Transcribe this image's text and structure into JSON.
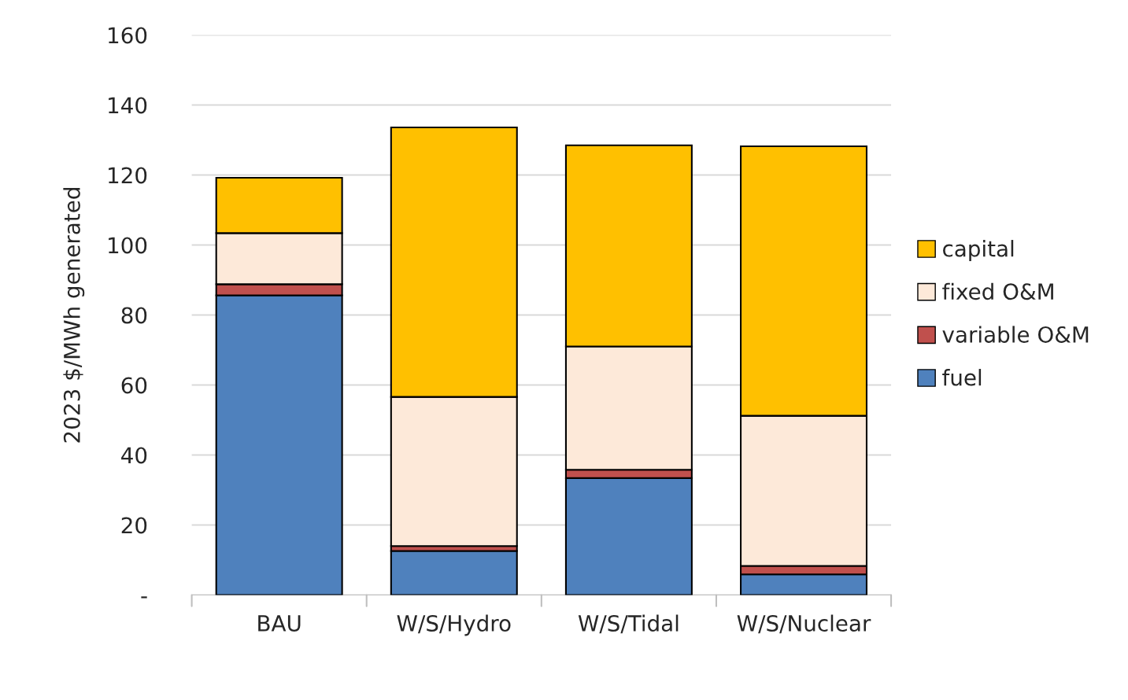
{
  "chart_data": {
    "type": "bar",
    "stacked": true,
    "ylabel": "2023 $/MWh generated",
    "categories": [
      "BAU",
      "W/S/Hydro",
      "W/S/Tidal",
      "W/S/Nuclear"
    ],
    "series": [
      {
        "name": "fuel",
        "color": "#4f81bd",
        "values": [
          85.6,
          12.6,
          33.4,
          5.9
        ]
      },
      {
        "name": "variable O&M",
        "color": "#c0504d",
        "values": [
          3.2,
          1.4,
          2.4,
          2.4
        ]
      },
      {
        "name": "fixed O&M",
        "color": "#fde9d9",
        "values": [
          14.6,
          42.6,
          35.2,
          42.9
        ]
      },
      {
        "name": "capital",
        "color": "#ffc000",
        "values": [
          15.8,
          77.0,
          57.5,
          77.0
        ]
      }
    ],
    "ylim": [
      0,
      160
    ],
    "yticks": [
      {
        "value": 0,
        "label": "-"
      },
      20,
      40,
      60,
      80,
      100,
      120,
      140,
      160
    ],
    "grid": "y",
    "legend": "right"
  }
}
